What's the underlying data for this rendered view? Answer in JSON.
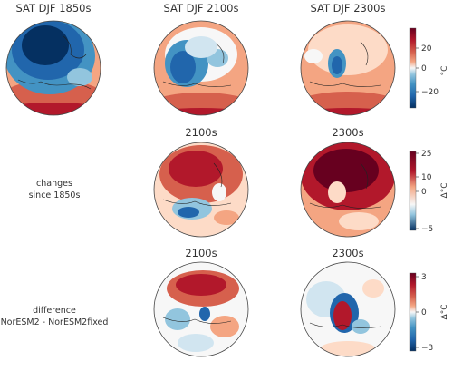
{
  "panels": [
    {
      "id": "p-r1c1",
      "title": "SAT DJF 1850s",
      "style": "cold"
    },
    {
      "id": "p-r1c2",
      "title": "SAT DJF 2100s",
      "style": "mid"
    },
    {
      "id": "p-r1c3",
      "title": "SAT DJF 2300s",
      "style": "warm"
    },
    {
      "id": "p-r2c2",
      "title": "2100s",
      "style": "change2100"
    },
    {
      "id": "p-r2c3",
      "title": "2300s",
      "style": "change2300"
    },
    {
      "id": "p-r3c2",
      "title": "2100s",
      "style": "diff2100"
    },
    {
      "id": "p-r3c3",
      "title": "2300s",
      "style": "diff2300"
    }
  ],
  "row_labels": {
    "changes": [
      "changes",
      "since 1850s"
    ],
    "difference": [
      "difference",
      "NorESM2 - NorESM2fixed"
    ]
  },
  "colorbars": [
    {
      "id": "cb-sat",
      "unit": "°C",
      "ticks": [
        "20",
        "0",
        "−20"
      ]
    },
    {
      "id": "cb-change",
      "unit": "Δ°C",
      "ticks": [
        "25",
        "10",
        "0",
        "−5"
      ]
    },
    {
      "id": "cb-diff",
      "unit": "Δ°C",
      "ticks": [
        "3",
        "0",
        "−3"
      ]
    }
  ],
  "colors": {
    "dark_red": "#67001f",
    "red": "#b2182b",
    "light_red": "#ef8a62",
    "pale_red": "#fddbc7",
    "white": "#f7f7f7",
    "pale_blue": "#d1e5f0",
    "light_blue": "#67a9cf",
    "blue": "#2166ac",
    "dark_blue": "#053061"
  }
}
